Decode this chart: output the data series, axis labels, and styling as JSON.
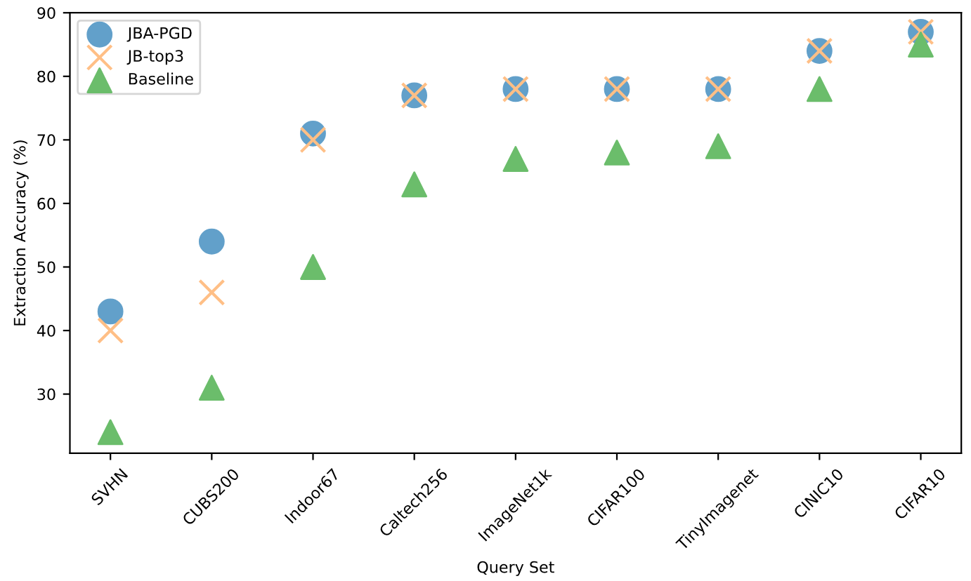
{
  "chart_data": {
    "type": "scatter",
    "xlabel": "Query Set",
    "ylabel": "Extraction Accuracy (%)",
    "categories": [
      "SVHN",
      "CUBS200",
      "Indoor67",
      "Caltech256",
      "ImageNet1k",
      "CIFAR100",
      "TinyImagenet",
      "CINIC10",
      "CIFAR10"
    ],
    "series": [
      {
        "name": "JBA-PGD",
        "color": "#62a0ca",
        "marker": "circle",
        "values": [
          43,
          54,
          71,
          77,
          78,
          78,
          78,
          84,
          87
        ]
      },
      {
        "name": "JB-top3",
        "color": "#ffbf86",
        "marker": "cross",
        "values": [
          40,
          46,
          70,
          77,
          78,
          78,
          78,
          84,
          87
        ]
      },
      {
        "name": "Baseline",
        "color": "#6bbd6b",
        "marker": "triangle",
        "values": [
          24,
          31,
          50,
          63,
          67,
          68,
          69,
          78,
          85
        ]
      }
    ],
    "ylim": [
      20.7,
      90
    ],
    "yticks": [
      30,
      40,
      50,
      60,
      70,
      80,
      90
    ],
    "legend": "top left"
  }
}
